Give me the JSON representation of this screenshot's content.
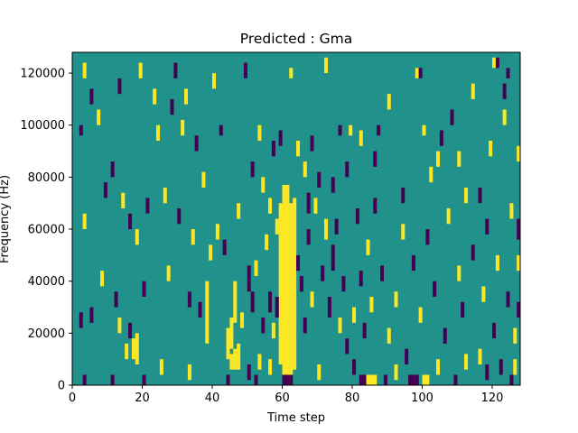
{
  "chart_data": {
    "type": "heatmap",
    "title": "Predicted : Gma",
    "xlabel": "Time step",
    "ylabel": "Frequency (Hz)",
    "xlim": [
      0,
      128
    ],
    "ylim": [
      0,
      128000
    ],
    "x_ticks": [
      0,
      20,
      40,
      60,
      80,
      100,
      120
    ],
    "y_ticks": [
      0,
      20000,
      40000,
      60000,
      80000,
      100000,
      120000
    ],
    "y_tick_labels": [
      "0",
      "20000",
      "40000",
      "60000",
      "80000",
      "100000",
      "120000"
    ],
    "colormap": "viridis",
    "colors": {
      "low": "#440154",
      "mid": "#21918c",
      "high": "#fde725"
    },
    "background_level": "mid",
    "grid": false,
    "cells": [
      {
        "t": 60,
        "f0": 0,
        "f1": 77000,
        "level": "high"
      },
      {
        "t": 61,
        "f0": 0,
        "f1": 77000,
        "level": "high"
      },
      {
        "t": 62,
        "f0": 4000,
        "f1": 70000,
        "level": "high"
      },
      {
        "t": 59,
        "f0": 8000,
        "f1": 70000,
        "level": "high"
      },
      {
        "t": 63,
        "f0": 6000,
        "f1": 72000,
        "level": "high"
      },
      {
        "t": 60,
        "f0": 0,
        "f1": 4000,
        "level": "low"
      },
      {
        "t": 61,
        "f0": 0,
        "f1": 4000,
        "level": "low"
      },
      {
        "t": 62,
        "f0": 0,
        "f1": 4000,
        "level": "low"
      },
      {
        "t": 82,
        "f0": 0,
        "f1": 4000,
        "level": "low"
      },
      {
        "t": 83,
        "f0": 0,
        "f1": 4000,
        "level": "low"
      },
      {
        "t": 84,
        "f0": 0,
        "f1": 4000,
        "level": "high"
      },
      {
        "t": 85,
        "f0": 0,
        "f1": 4000,
        "level": "high"
      },
      {
        "t": 86,
        "f0": 0,
        "f1": 4000,
        "level": "high"
      },
      {
        "t": 96,
        "f0": 0,
        "f1": 4000,
        "level": "low"
      },
      {
        "t": 97,
        "f0": 0,
        "f1": 4000,
        "level": "low"
      },
      {
        "t": 98,
        "f0": 0,
        "f1": 4000,
        "level": "low"
      },
      {
        "t": 100,
        "f0": 0,
        "f1": 4000,
        "level": "high"
      },
      {
        "t": 101,
        "f0": 0,
        "f1": 4000,
        "level": "high"
      },
      {
        "t": 3,
        "f0": 0,
        "f1": 4000,
        "level": "low"
      },
      {
        "t": 11,
        "f0": 0,
        "f1": 4000,
        "level": "low"
      },
      {
        "t": 20,
        "f0": 0,
        "f1": 4000,
        "level": "low"
      },
      {
        "t": 44,
        "f0": 0,
        "f1": 4000,
        "level": "low"
      },
      {
        "t": 52,
        "f0": 0,
        "f1": 4000,
        "level": "low"
      },
      {
        "t": 89,
        "f0": 0,
        "f1": 4000,
        "level": "low"
      },
      {
        "t": 109,
        "f0": 0,
        "f1": 4000,
        "level": "low"
      },
      {
        "t": 125,
        "f0": 0,
        "f1": 4000,
        "level": "low"
      },
      {
        "t": 46,
        "f0": 24000,
        "f1": 40000,
        "level": "high"
      },
      {
        "t": 45,
        "f0": 14000,
        "f1": 26000,
        "level": "high"
      },
      {
        "t": 44,
        "f0": 10000,
        "f1": 22000,
        "level": "high"
      },
      {
        "t": 45,
        "f0": 6000,
        "f1": 12000,
        "level": "high"
      },
      {
        "t": 46,
        "f0": 6000,
        "f1": 14000,
        "level": "high"
      },
      {
        "t": 47,
        "f0": 6000,
        "f1": 16000,
        "level": "high"
      },
      {
        "t": 38,
        "f0": 16000,
        "f1": 40000,
        "level": "high"
      },
      {
        "t": 18,
        "f0": 8000,
        "f1": 20000,
        "level": "high"
      },
      {
        "t": 17,
        "f0": 10000,
        "f1": 18000,
        "level": "high"
      },
      {
        "t": 19,
        "f0": 118000,
        "f1": 124000,
        "level": "high"
      },
      {
        "t": 3,
        "f0": 60000,
        "f1": 66000,
        "level": "high"
      },
      {
        "t": 5,
        "f0": 24000,
        "f1": 30000,
        "level": "low"
      },
      {
        "t": 12,
        "f0": 30000,
        "f1": 36000,
        "level": "low"
      },
      {
        "t": 13,
        "f0": 20000,
        "f1": 26000,
        "level": "high"
      },
      {
        "t": 15,
        "f0": 10000,
        "f1": 16000,
        "level": "high"
      },
      {
        "t": 16,
        "f0": 18000,
        "f1": 24000,
        "level": "low"
      },
      {
        "t": 2,
        "f0": 22000,
        "f1": 28000,
        "level": "low"
      },
      {
        "t": 8,
        "f0": 38000,
        "f1": 44000,
        "level": "high"
      },
      {
        "t": 20,
        "f0": 34000,
        "f1": 40000,
        "level": "low"
      },
      {
        "t": 27,
        "f0": 40000,
        "f1": 46000,
        "level": "high"
      },
      {
        "t": 33,
        "f0": 30000,
        "f1": 36000,
        "level": "low"
      },
      {
        "t": 36,
        "f0": 26000,
        "f1": 32000,
        "level": "low"
      },
      {
        "t": 39,
        "f0": 48000,
        "f1": 54000,
        "level": "high"
      },
      {
        "t": 41,
        "f0": 56000,
        "f1": 62000,
        "level": "high"
      },
      {
        "t": 43,
        "f0": 50000,
        "f1": 56000,
        "level": "low"
      },
      {
        "t": 48,
        "f0": 22000,
        "f1": 28000,
        "level": "high"
      },
      {
        "t": 50,
        "f0": 36000,
        "f1": 46000,
        "level": "low"
      },
      {
        "t": 51,
        "f0": 28000,
        "f1": 36000,
        "level": "low"
      },
      {
        "t": 52,
        "f0": 42000,
        "f1": 48000,
        "level": "high"
      },
      {
        "t": 54,
        "f0": 20000,
        "f1": 26000,
        "level": "low"
      },
      {
        "t": 55,
        "f0": 52000,
        "f1": 58000,
        "level": "high"
      },
      {
        "t": 56,
        "f0": 28000,
        "f1": 36000,
        "level": "low"
      },
      {
        "t": 57,
        "f0": 18000,
        "f1": 24000,
        "level": "high"
      },
      {
        "t": 58,
        "f0": 26000,
        "f1": 34000,
        "level": "low"
      },
      {
        "t": 54,
        "f0": 74000,
        "f1": 80000,
        "level": "high"
      },
      {
        "t": 58,
        "f0": 58000,
        "f1": 64000,
        "level": "high"
      },
      {
        "t": 64,
        "f0": 44000,
        "f1": 50000,
        "level": "low"
      },
      {
        "t": 65,
        "f0": 36000,
        "f1": 42000,
        "level": "low"
      },
      {
        "t": 66,
        "f0": 20000,
        "f1": 26000,
        "level": "low"
      },
      {
        "t": 67,
        "f0": 54000,
        "f1": 60000,
        "level": "low"
      },
      {
        "t": 67,
        "f0": 66000,
        "f1": 74000,
        "level": "low"
      },
      {
        "t": 66,
        "f0": 80000,
        "f1": 86000,
        "level": "high"
      },
      {
        "t": 68,
        "f0": 30000,
        "f1": 36000,
        "level": "high"
      },
      {
        "t": 69,
        "f0": 66000,
        "f1": 72000,
        "level": "high"
      },
      {
        "t": 70,
        "f0": 76000,
        "f1": 82000,
        "level": "low"
      },
      {
        "t": 71,
        "f0": 40000,
        "f1": 46000,
        "level": "low"
      },
      {
        "t": 72,
        "f0": 56000,
        "f1": 64000,
        "level": "high"
      },
      {
        "t": 73,
        "f0": 26000,
        "f1": 34000,
        "level": "low"
      },
      {
        "t": 74,
        "f0": 44000,
        "f1": 54000,
        "level": "low"
      },
      {
        "t": 75,
        "f0": 58000,
        "f1": 64000,
        "level": "low"
      },
      {
        "t": 76,
        "f0": 20000,
        "f1": 26000,
        "level": "high"
      },
      {
        "t": 77,
        "f0": 36000,
        "f1": 42000,
        "level": "low"
      },
      {
        "t": 78,
        "f0": 12000,
        "f1": 18000,
        "level": "low"
      },
      {
        "t": 79,
        "f0": 96000,
        "f1": 100000,
        "level": "high"
      },
      {
        "t": 80,
        "f0": 24000,
        "f1": 30000,
        "level": "high"
      },
      {
        "t": 81,
        "f0": 62000,
        "f1": 68000,
        "level": "low"
      },
      {
        "t": 82,
        "f0": 38000,
        "f1": 44000,
        "level": "low"
      },
      {
        "t": 83,
        "f0": 18000,
        "f1": 24000,
        "level": "low"
      },
      {
        "t": 84,
        "f0": 50000,
        "f1": 56000,
        "level": "high"
      },
      {
        "t": 85,
        "f0": 28000,
        "f1": 34000,
        "level": "high"
      },
      {
        "t": 86,
        "f0": 66000,
        "f1": 72000,
        "level": "low"
      },
      {
        "t": 87,
        "f0": 96000,
        "f1": 100000,
        "level": "low"
      },
      {
        "t": 88,
        "f0": 40000,
        "f1": 46000,
        "level": "low"
      },
      {
        "t": 90,
        "f0": 16000,
        "f1": 22000,
        "level": "high"
      },
      {
        "t": 92,
        "f0": 30000,
        "f1": 36000,
        "level": "high"
      },
      {
        "t": 94,
        "f0": 56000,
        "f1": 62000,
        "level": "high"
      },
      {
        "t": 95,
        "f0": 8000,
        "f1": 14000,
        "level": "low"
      },
      {
        "t": 97,
        "f0": 44000,
        "f1": 50000,
        "level": "low"
      },
      {
        "t": 99,
        "f0": 24000,
        "f1": 30000,
        "level": "high"
      },
      {
        "t": 100,
        "f0": 96000,
        "f1": 100000,
        "level": "high"
      },
      {
        "t": 101,
        "f0": 54000,
        "f1": 60000,
        "level": "low"
      },
      {
        "t": 103,
        "f0": 34000,
        "f1": 40000,
        "level": "low"
      },
      {
        "t": 104,
        "f0": 84000,
        "f1": 90000,
        "level": "high"
      },
      {
        "t": 106,
        "f0": 16000,
        "f1": 22000,
        "level": "low"
      },
      {
        "t": 107,
        "f0": 62000,
        "f1": 68000,
        "level": "high"
      },
      {
        "t": 108,
        "f0": 100000,
        "f1": 106000,
        "level": "low"
      },
      {
        "t": 110,
        "f0": 40000,
        "f1": 46000,
        "level": "high"
      },
      {
        "t": 111,
        "f0": 26000,
        "f1": 32000,
        "level": "low"
      },
      {
        "t": 112,
        "f0": 70000,
        "f1": 76000,
        "level": "high"
      },
      {
        "t": 114,
        "f0": 48000,
        "f1": 54000,
        "level": "low"
      },
      {
        "t": 116,
        "f0": 8000,
        "f1": 14000,
        "level": "high"
      },
      {
        "t": 117,
        "f0": 32000,
        "f1": 38000,
        "level": "high"
      },
      {
        "t": 118,
        "f0": 58000,
        "f1": 64000,
        "level": "low"
      },
      {
        "t": 119,
        "f0": 88000,
        "f1": 94000,
        "level": "high"
      },
      {
        "t": 120,
        "f0": 18000,
        "f1": 24000,
        "level": "low"
      },
      {
        "t": 121,
        "f0": 44000,
        "f1": 50000,
        "level": "high"
      },
      {
        "t": 122,
        "f0": 4000,
        "f1": 10000,
        "level": "low"
      },
      {
        "t": 123,
        "f0": 100000,
        "f1": 106000,
        "level": "high"
      },
      {
        "t": 124,
        "f0": 30000,
        "f1": 36000,
        "level": "low"
      },
      {
        "t": 125,
        "f0": 64000,
        "f1": 70000,
        "level": "high"
      },
      {
        "t": 126,
        "f0": 16000,
        "f1": 22000,
        "level": "high"
      },
      {
        "t": 127,
        "f0": 86000,
        "f1": 92000,
        "level": "high"
      },
      {
        "t": 127,
        "f0": 56000,
        "f1": 64000,
        "level": "low"
      },
      {
        "t": 2,
        "f0": 96000,
        "f1": 100000,
        "level": "low"
      },
      {
        "t": 3,
        "f0": 118000,
        "f1": 124000,
        "level": "high"
      },
      {
        "t": 5,
        "f0": 108000,
        "f1": 114000,
        "level": "low"
      },
      {
        "t": 7,
        "f0": 100000,
        "f1": 106000,
        "level": "high"
      },
      {
        "t": 9,
        "f0": 72000,
        "f1": 78000,
        "level": "low"
      },
      {
        "t": 11,
        "f0": 80000,
        "f1": 86000,
        "level": "low"
      },
      {
        "t": 13,
        "f0": 112000,
        "f1": 118000,
        "level": "low"
      },
      {
        "t": 14,
        "f0": 68000,
        "f1": 74000,
        "level": "high"
      },
      {
        "t": 16,
        "f0": 60000,
        "f1": 66000,
        "level": "low"
      },
      {
        "t": 18,
        "f0": 54000,
        "f1": 60000,
        "level": "high"
      },
      {
        "t": 21,
        "f0": 66000,
        "f1": 72000,
        "level": "low"
      },
      {
        "t": 23,
        "f0": 108000,
        "f1": 114000,
        "level": "high"
      },
      {
        "t": 24,
        "f0": 94000,
        "f1": 100000,
        "level": "high"
      },
      {
        "t": 26,
        "f0": 70000,
        "f1": 76000,
        "level": "high"
      },
      {
        "t": 28,
        "f0": 104000,
        "f1": 110000,
        "level": "low"
      },
      {
        "t": 29,
        "f0": 118000,
        "f1": 124000,
        "level": "low"
      },
      {
        "t": 30,
        "f0": 62000,
        "f1": 68000,
        "level": "low"
      },
      {
        "t": 31,
        "f0": 96000,
        "f1": 102000,
        "level": "high"
      },
      {
        "t": 32,
        "f0": 108000,
        "f1": 114000,
        "level": "high"
      },
      {
        "t": 34,
        "f0": 54000,
        "f1": 60000,
        "level": "high"
      },
      {
        "t": 35,
        "f0": 90000,
        "f1": 96000,
        "level": "low"
      },
      {
        "t": 37,
        "f0": 76000,
        "f1": 82000,
        "level": "high"
      },
      {
        "t": 40,
        "f0": 114000,
        "f1": 120000,
        "level": "high"
      },
      {
        "t": 42,
        "f0": 96000,
        "f1": 100000,
        "level": "low"
      },
      {
        "t": 47,
        "f0": 64000,
        "f1": 70000,
        "level": "high"
      },
      {
        "t": 49,
        "f0": 118000,
        "f1": 124000,
        "level": "low"
      },
      {
        "t": 51,
        "f0": 80000,
        "f1": 86000,
        "level": "low"
      },
      {
        "t": 53,
        "f0": 94000,
        "f1": 100000,
        "level": "high"
      },
      {
        "t": 56,
        "f0": 66000,
        "f1": 72000,
        "level": "high"
      },
      {
        "t": 57,
        "f0": 88000,
        "f1": 94000,
        "level": "low"
      },
      {
        "t": 59,
        "f0": 92000,
        "f1": 98000,
        "level": "low"
      },
      {
        "t": 62,
        "f0": 118000,
        "f1": 122000,
        "level": "high"
      },
      {
        "t": 64,
        "f0": 88000,
        "f1": 94000,
        "level": "high"
      },
      {
        "t": 68,
        "f0": 90000,
        "f1": 96000,
        "level": "low"
      },
      {
        "t": 72,
        "f0": 120000,
        "f1": 126000,
        "level": "high"
      },
      {
        "t": 74,
        "f0": 74000,
        "f1": 80000,
        "level": "low"
      },
      {
        "t": 76,
        "f0": 96000,
        "f1": 100000,
        "level": "low"
      },
      {
        "t": 78,
        "f0": 80000,
        "f1": 86000,
        "level": "low"
      },
      {
        "t": 82,
        "f0": 92000,
        "f1": 98000,
        "level": "high"
      },
      {
        "t": 86,
        "f0": 84000,
        "f1": 90000,
        "level": "low"
      },
      {
        "t": 90,
        "f0": 106000,
        "f1": 112000,
        "level": "high"
      },
      {
        "t": 94,
        "f0": 70000,
        "f1": 76000,
        "level": "low"
      },
      {
        "t": 98,
        "f0": 118000,
        "f1": 122000,
        "level": "high"
      },
      {
        "t": 99,
        "f0": 118000,
        "f1": 122000,
        "level": "low"
      },
      {
        "t": 102,
        "f0": 78000,
        "f1": 84000,
        "level": "high"
      },
      {
        "t": 105,
        "f0": 92000,
        "f1": 98000,
        "level": "low"
      },
      {
        "t": 110,
        "f0": 84000,
        "f1": 90000,
        "level": "high"
      },
      {
        "t": 114,
        "f0": 110000,
        "f1": 116000,
        "level": "high"
      },
      {
        "t": 116,
        "f0": 70000,
        "f1": 76000,
        "level": "low"
      },
      {
        "t": 120,
        "f0": 122000,
        "f1": 126000,
        "level": "high"
      },
      {
        "t": 121,
        "f0": 122000,
        "f1": 126000,
        "level": "low"
      },
      {
        "t": 123,
        "f0": 110000,
        "f1": 116000,
        "level": "low"
      },
      {
        "t": 124,
        "f0": 118000,
        "f1": 122000,
        "level": "low"
      },
      {
        "t": 127,
        "f0": 44000,
        "f1": 50000,
        "level": "high"
      },
      {
        "t": 127,
        "f0": 26000,
        "f1": 32000,
        "level": "low"
      },
      {
        "t": 126,
        "f0": 4000,
        "f1": 10000,
        "level": "high"
      },
      {
        "t": 33,
        "f0": 2000,
        "f1": 8000,
        "level": "high"
      },
      {
        "t": 25,
        "f0": 4000,
        "f1": 10000,
        "level": "high"
      },
      {
        "t": 50,
        "f0": 2000,
        "f1": 8000,
        "level": "low"
      },
      {
        "t": 53,
        "f0": 6000,
        "f1": 12000,
        "level": "high"
      },
      {
        "t": 56,
        "f0": 4000,
        "f1": 10000,
        "level": "high"
      },
      {
        "t": 70,
        "f0": 2000,
        "f1": 8000,
        "level": "high"
      },
      {
        "t": 80,
        "f0": 4000,
        "f1": 10000,
        "level": "low"
      },
      {
        "t": 92,
        "f0": 2000,
        "f1": 8000,
        "level": "high"
      },
      {
        "t": 104,
        "f0": 4000,
        "f1": 10000,
        "level": "high"
      },
      {
        "t": 112,
        "f0": 6000,
        "f1": 12000,
        "level": "high"
      },
      {
        "t": 118,
        "f0": 2000,
        "f1": 8000,
        "level": "low"
      }
    ]
  }
}
